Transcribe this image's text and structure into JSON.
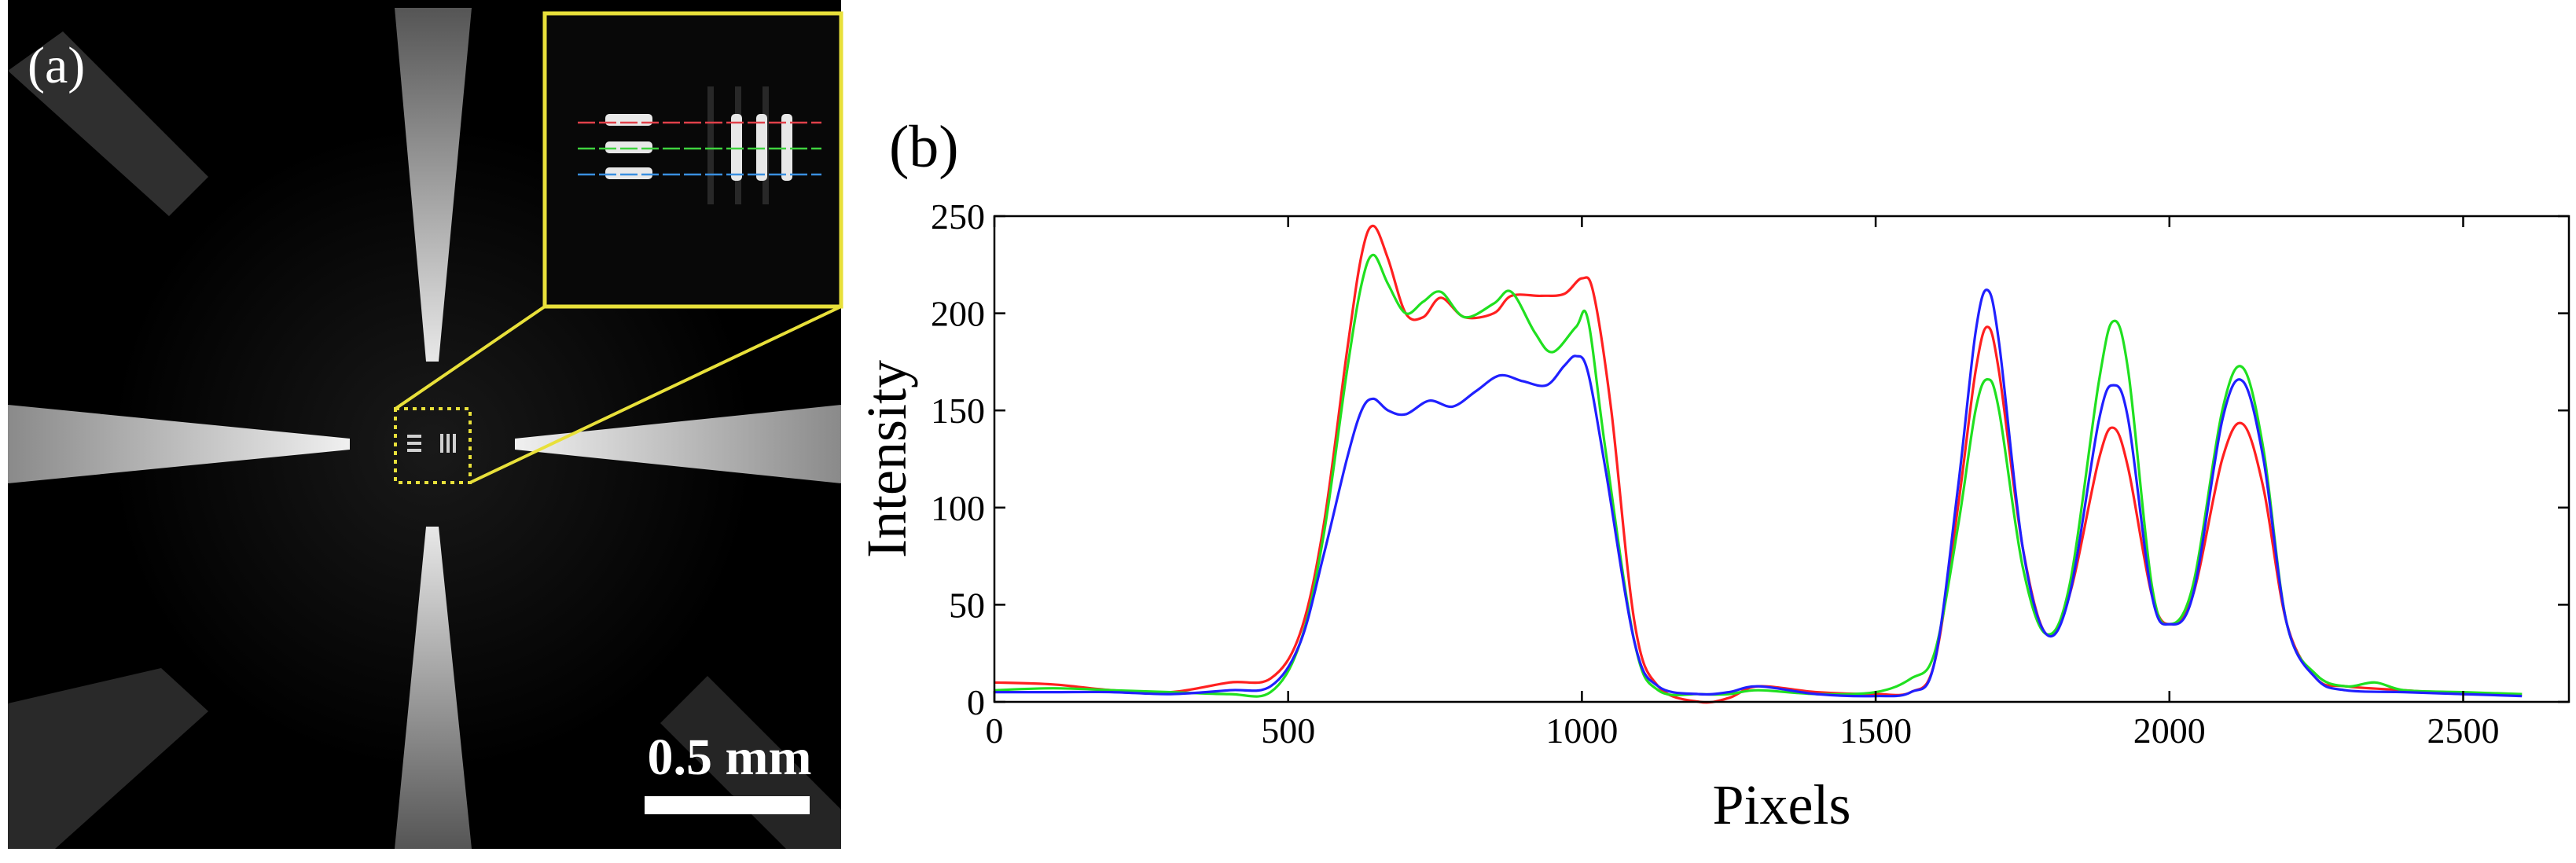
{
  "panel_a": {
    "label": "(a)",
    "scale_bar_text": "0.5 mm",
    "inset_line_colors": [
      "#e0404a",
      "#3fd23f",
      "#3a8fe0"
    ],
    "highlight_color": "#e8e03a"
  },
  "chart_data": {
    "type": "line",
    "panel_label": "(b)",
    "title": "",
    "xlabel": "Pixels",
    "ylabel": "Intensity",
    "xlim": [
      0,
      2680
    ],
    "ylim": [
      0,
      250
    ],
    "xticks": [
      0,
      500,
      1000,
      1500,
      2000,
      2500
    ],
    "yticks": [
      0,
      50,
      100,
      150,
      200,
      250
    ],
    "grid": false,
    "legend": "none",
    "series": [
      {
        "color": "#ff2020",
        "points": [
          [
            0,
            10
          ],
          [
            100,
            9
          ],
          [
            200,
            6
          ],
          [
            300,
            5
          ],
          [
            400,
            10
          ],
          [
            470,
            12
          ],
          [
            520,
            35
          ],
          [
            560,
            90
          ],
          [
            600,
            180
          ],
          [
            625,
            230
          ],
          [
            645,
            245
          ],
          [
            670,
            228
          ],
          [
            700,
            200
          ],
          [
            730,
            198
          ],
          [
            760,
            208
          ],
          [
            800,
            198
          ],
          [
            850,
            200
          ],
          [
            880,
            209
          ],
          [
            930,
            209
          ],
          [
            970,
            210
          ],
          [
            1000,
            218
          ],
          [
            1020,
            210
          ],
          [
            1050,
            150
          ],
          [
            1090,
            40
          ],
          [
            1130,
            8
          ],
          [
            1200,
            0
          ],
          [
            1250,
            2
          ],
          [
            1300,
            8
          ],
          [
            1400,
            5
          ],
          [
            1500,
            4
          ],
          [
            1560,
            5
          ],
          [
            1600,
            20
          ],
          [
            1640,
            100
          ],
          [
            1670,
            170
          ],
          [
            1690,
            193
          ],
          [
            1710,
            170
          ],
          [
            1750,
            80
          ],
          [
            1790,
            35
          ],
          [
            1830,
            55
          ],
          [
            1880,
            125
          ],
          [
            1905,
            141
          ],
          [
            1930,
            120
          ],
          [
            1970,
            55
          ],
          [
            2000,
            40
          ],
          [
            2040,
            55
          ],
          [
            2090,
            125
          ],
          [
            2125,
            143
          ],
          [
            2160,
            110
          ],
          [
            2200,
            40
          ],
          [
            2250,
            12
          ],
          [
            2300,
            8
          ],
          [
            2400,
            6
          ],
          [
            2500,
            4
          ],
          [
            2600,
            4
          ]
        ]
      },
      {
        "color": "#20e020",
        "points": [
          [
            0,
            6
          ],
          [
            100,
            7
          ],
          [
            200,
            6
          ],
          [
            300,
            5
          ],
          [
            400,
            4
          ],
          [
            470,
            5
          ],
          [
            520,
            30
          ],
          [
            560,
            85
          ],
          [
            600,
            170
          ],
          [
            625,
            215
          ],
          [
            645,
            230
          ],
          [
            670,
            215
          ],
          [
            700,
            200
          ],
          [
            730,
            206
          ],
          [
            760,
            211
          ],
          [
            800,
            198
          ],
          [
            850,
            205
          ],
          [
            880,
            211
          ],
          [
            920,
            190
          ],
          [
            950,
            180
          ],
          [
            990,
            193
          ],
          [
            1010,
            197
          ],
          [
            1040,
            130
          ],
          [
            1090,
            30
          ],
          [
            1130,
            6
          ],
          [
            1200,
            4
          ],
          [
            1250,
            4
          ],
          [
            1300,
            6
          ],
          [
            1400,
            4
          ],
          [
            1500,
            5
          ],
          [
            1560,
            12
          ],
          [
            1600,
            25
          ],
          [
            1640,
            90
          ],
          [
            1670,
            150
          ],
          [
            1690,
            166
          ],
          [
            1710,
            150
          ],
          [
            1750,
            70
          ],
          [
            1790,
            35
          ],
          [
            1830,
            60
          ],
          [
            1880,
            165
          ],
          [
            1905,
            196
          ],
          [
            1930,
            170
          ],
          [
            1970,
            60
          ],
          [
            2000,
            40
          ],
          [
            2040,
            60
          ],
          [
            2090,
            150
          ],
          [
            2125,
            172
          ],
          [
            2160,
            130
          ],
          [
            2200,
            40
          ],
          [
            2250,
            14
          ],
          [
            2300,
            8
          ],
          [
            2350,
            10
          ],
          [
            2400,
            6
          ],
          [
            2500,
            5
          ],
          [
            2600,
            4
          ]
        ]
      },
      {
        "color": "#2020ff",
        "points": [
          [
            0,
            5
          ],
          [
            100,
            5
          ],
          [
            200,
            5
          ],
          [
            300,
            4
          ],
          [
            400,
            6
          ],
          [
            470,
            8
          ],
          [
            520,
            30
          ],
          [
            560,
            75
          ],
          [
            600,
            125
          ],
          [
            625,
            150
          ],
          [
            645,
            156
          ],
          [
            670,
            150
          ],
          [
            700,
            148
          ],
          [
            740,
            155
          ],
          [
            780,
            152
          ],
          [
            820,
            160
          ],
          [
            860,
            168
          ],
          [
            900,
            165
          ],
          [
            940,
            163
          ],
          [
            970,
            173
          ],
          [
            990,
            178
          ],
          [
            1010,
            170
          ],
          [
            1040,
            120
          ],
          [
            1090,
            30
          ],
          [
            1130,
            8
          ],
          [
            1200,
            4
          ],
          [
            1250,
            5
          ],
          [
            1300,
            8
          ],
          [
            1400,
            4
          ],
          [
            1500,
            3
          ],
          [
            1560,
            5
          ],
          [
            1600,
            20
          ],
          [
            1640,
            110
          ],
          [
            1670,
            190
          ],
          [
            1690,
            212
          ],
          [
            1710,
            185
          ],
          [
            1750,
            80
          ],
          [
            1790,
            35
          ],
          [
            1830,
            55
          ],
          [
            1880,
            145
          ],
          [
            1905,
            163
          ],
          [
            1930,
            145
          ],
          [
            1970,
            55
          ],
          [
            2000,
            40
          ],
          [
            2040,
            55
          ],
          [
            2090,
            145
          ],
          [
            2125,
            165
          ],
          [
            2160,
            125
          ],
          [
            2200,
            40
          ],
          [
            2250,
            12
          ],
          [
            2300,
            6
          ],
          [
            2400,
            5
          ],
          [
            2500,
            4
          ],
          [
            2600,
            3
          ]
        ]
      }
    ]
  }
}
